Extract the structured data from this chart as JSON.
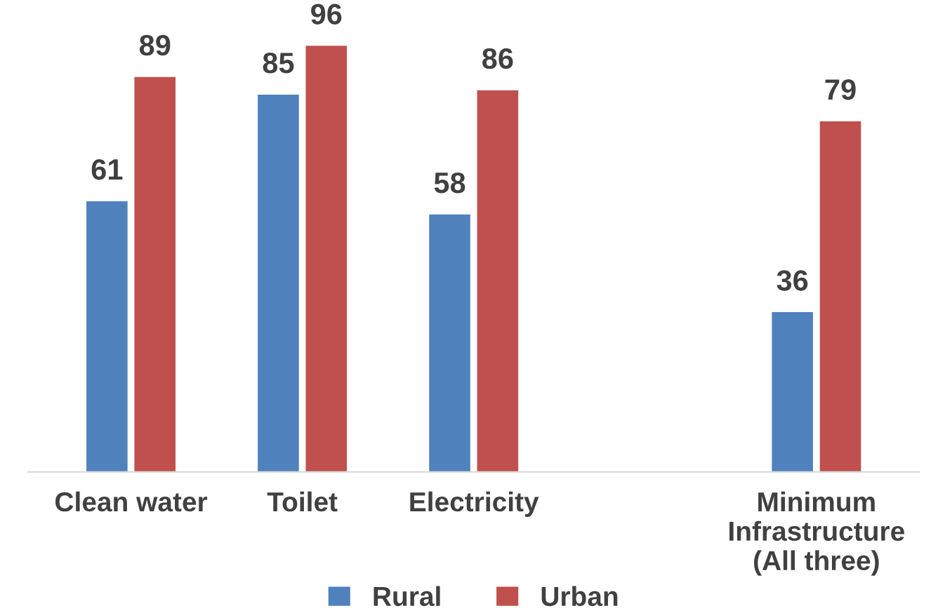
{
  "chart_data": {
    "type": "bar",
    "categories": [
      "Clean water",
      "Toilet",
      "Electricity",
      null,
      "Minimum Infrastructure  (All three)"
    ],
    "series": [
      {
        "name": "Rural",
        "color": "#4f81bd",
        "values": [
          61,
          85,
          58,
          null,
          36
        ]
      },
      {
        "name": "Urban",
        "color": "#c0504d",
        "values": [
          89,
          96,
          86,
          null,
          79
        ]
      }
    ],
    "data_labels": true,
    "legend": "bottom",
    "grid": false
  }
}
